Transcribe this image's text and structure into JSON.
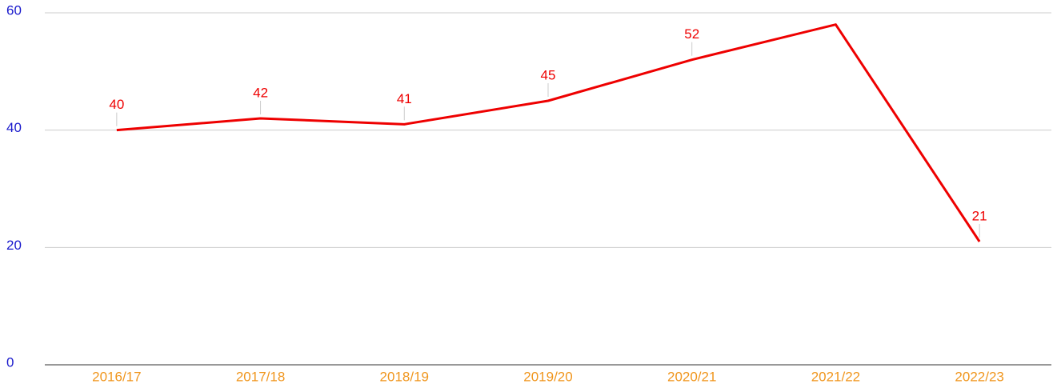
{
  "chart_data": {
    "type": "line",
    "categories": [
      "2016/17",
      "2017/18",
      "2018/19",
      "2019/20",
      "2020/21",
      "2021/22",
      "2022/23"
    ],
    "series": [
      {
        "color": "#ee0000",
        "values": [
          40,
          42,
          41,
          45,
          52,
          58,
          21
        ],
        "value_labels": [
          "40",
          "42",
          "41",
          "45",
          "52",
          null,
          "21"
        ]
      }
    ],
    "ylim": [
      0,
      60
    ],
    "yticks": [
      0,
      20,
      40,
      60
    ],
    "grid": true,
    "ytick_color": "#1a1acc",
    "xtick_color": "#f0961e"
  }
}
